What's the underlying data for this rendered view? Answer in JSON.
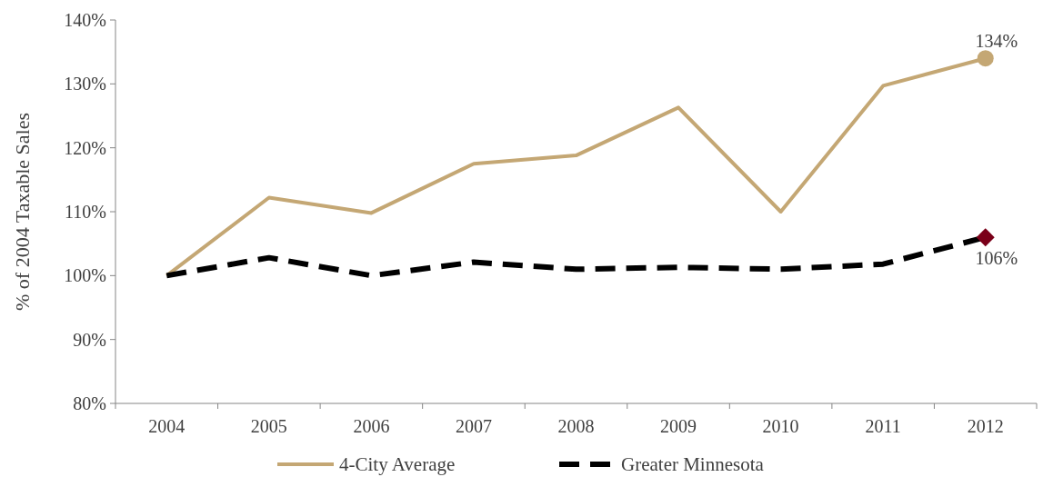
{
  "chart_data": {
    "type": "line",
    "ylabel": "% of 2004 Taxable Sales",
    "categories": [
      "2004",
      "2005",
      "2006",
      "2007",
      "2008",
      "2009",
      "2010",
      "2011",
      "2012"
    ],
    "ylim": [
      80,
      140
    ],
    "yticks": [
      {
        "value": 80,
        "label": "80%"
      },
      {
        "value": 90,
        "label": "90%"
      },
      {
        "value": 100,
        "label": "100%"
      },
      {
        "value": 110,
        "label": "110%"
      },
      {
        "value": 120,
        "label": "120%"
      },
      {
        "value": 130,
        "label": "130%"
      },
      {
        "value": 140,
        "label": "140%"
      }
    ],
    "grid": false,
    "legend": "bottom",
    "series": [
      {
        "name": "4-City Average",
        "color": "#c4a774",
        "line_style": "solid",
        "values": [
          100,
          112.2,
          109.8,
          117.5,
          118.8,
          126.3,
          110,
          129.7,
          134
        ]
      },
      {
        "name": "Greater Minnesota",
        "color": "#000000",
        "line_style": "dashed",
        "values": [
          100,
          102.8,
          100,
          102.1,
          101,
          101.3,
          101,
          101.8,
          106
        ]
      },
      {
        "type": "scatter",
        "color": "#c4a774",
        "marker": "circle",
        "values": [
          null,
          null,
          null,
          null,
          null,
          null,
          null,
          null,
          134
        ],
        "value_labels": [
          null,
          null,
          null,
          null,
          null,
          null,
          null,
          null,
          "134%"
        ]
      },
      {
        "type": "scatter",
        "color": "#7a0019",
        "marker": "diamond",
        "values": [
          null,
          null,
          null,
          null,
          null,
          null,
          null,
          null,
          106
        ],
        "value_labels": [
          null,
          null,
          null,
          null,
          null,
          null,
          null,
          null,
          "106%"
        ]
      }
    ]
  }
}
